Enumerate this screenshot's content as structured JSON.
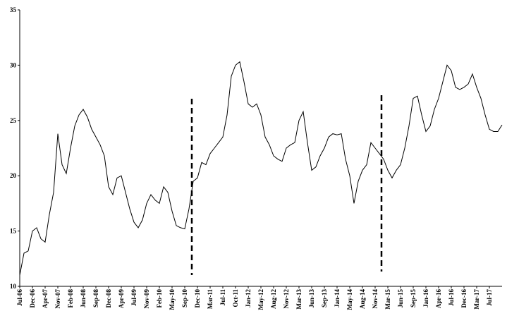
{
  "chart_data": {
    "type": "line",
    "categories": [
      "Jul-06",
      null,
      null,
      "Dec-06",
      null,
      null,
      "Apr-07",
      null,
      null,
      "Nov-07",
      null,
      null,
      "Feb-08",
      null,
      null,
      "Jun-08",
      null,
      null,
      "Sep-08",
      null,
      null,
      "Dec-08",
      null,
      null,
      "Apr-09",
      null,
      null,
      "Jul-09",
      null,
      null,
      "Nov-09",
      null,
      null,
      "Feb-10",
      null,
      null,
      "May-10",
      null,
      null,
      "Sep-10",
      null,
      null,
      "Dec-10",
      null,
      null,
      "Mar-11",
      null,
      null,
      "Jul-11",
      null,
      null,
      "Oct-11",
      null,
      null,
      "Jan-12",
      null,
      null,
      "May-12",
      null,
      null,
      "Aug-12",
      null,
      null,
      "Nov-12",
      null,
      null,
      "Mar-13",
      null,
      null,
      "Jun-13",
      null,
      null,
      "Sep-13",
      null,
      null,
      "Jan-14",
      null,
      null,
      "May-14",
      null,
      null,
      "Aug-14",
      null,
      null,
      "Nov-14",
      null,
      null,
      "Mar-15",
      null,
      null,
      "Jun-15",
      null,
      null,
      "Sep-15",
      null,
      null,
      "Jan-16",
      null,
      null,
      "Apr-16",
      null,
      null,
      "Jul-16",
      null,
      null,
      "Dec-16",
      null,
      null,
      "Mar-17",
      null,
      null,
      "Jul-17",
      null,
      null,
      null
    ],
    "values": [
      11,
      13,
      13.2,
      15,
      15.3,
      14.3,
      14,
      16.5,
      18.5,
      23.8,
      21,
      20.2,
      22.5,
      24.5,
      25.5,
      26,
      25.3,
      24.2,
      23.5,
      22.8,
      21.8,
      19,
      18.3,
      19.8,
      20,
      18.5,
      17,
      15.8,
      15.3,
      16,
      17.5,
      18.3,
      17.8,
      17.5,
      19,
      18.5,
      16.8,
      15.5,
      15.3,
      15.2,
      17,
      19.5,
      19.8,
      21.2,
      21,
      22,
      22.5,
      23,
      23.5,
      25.5,
      29,
      30,
      30.3,
      28.5,
      26.5,
      26.2,
      26.5,
      25.5,
      23.5,
      22.8,
      21.8,
      21.5,
      21.3,
      22.5,
      22.8,
      23,
      25,
      25.8,
      23,
      20.5,
      20.8,
      21.8,
      22.5,
      23.5,
      23.8,
      23.7,
      23.8,
      21.5,
      20,
      17.5,
      19.5,
      20.5,
      21,
      23,
      22.5,
      22,
      21.5,
      20.5,
      19.8,
      20.5,
      21,
      22.5,
      24.5,
      27,
      27.2,
      25.5,
      24,
      24.5,
      26,
      27,
      28.5,
      30,
      29.5,
      28,
      27.8,
      28,
      28.3,
      29.2,
      28,
      27,
      25.5,
      24.2,
      24,
      24,
      24.6
    ],
    "color": "#000000",
    "ylim": [
      10,
      35
    ],
    "yticks": [
      10,
      15,
      20,
      25,
      30,
      35
    ]
  }
}
